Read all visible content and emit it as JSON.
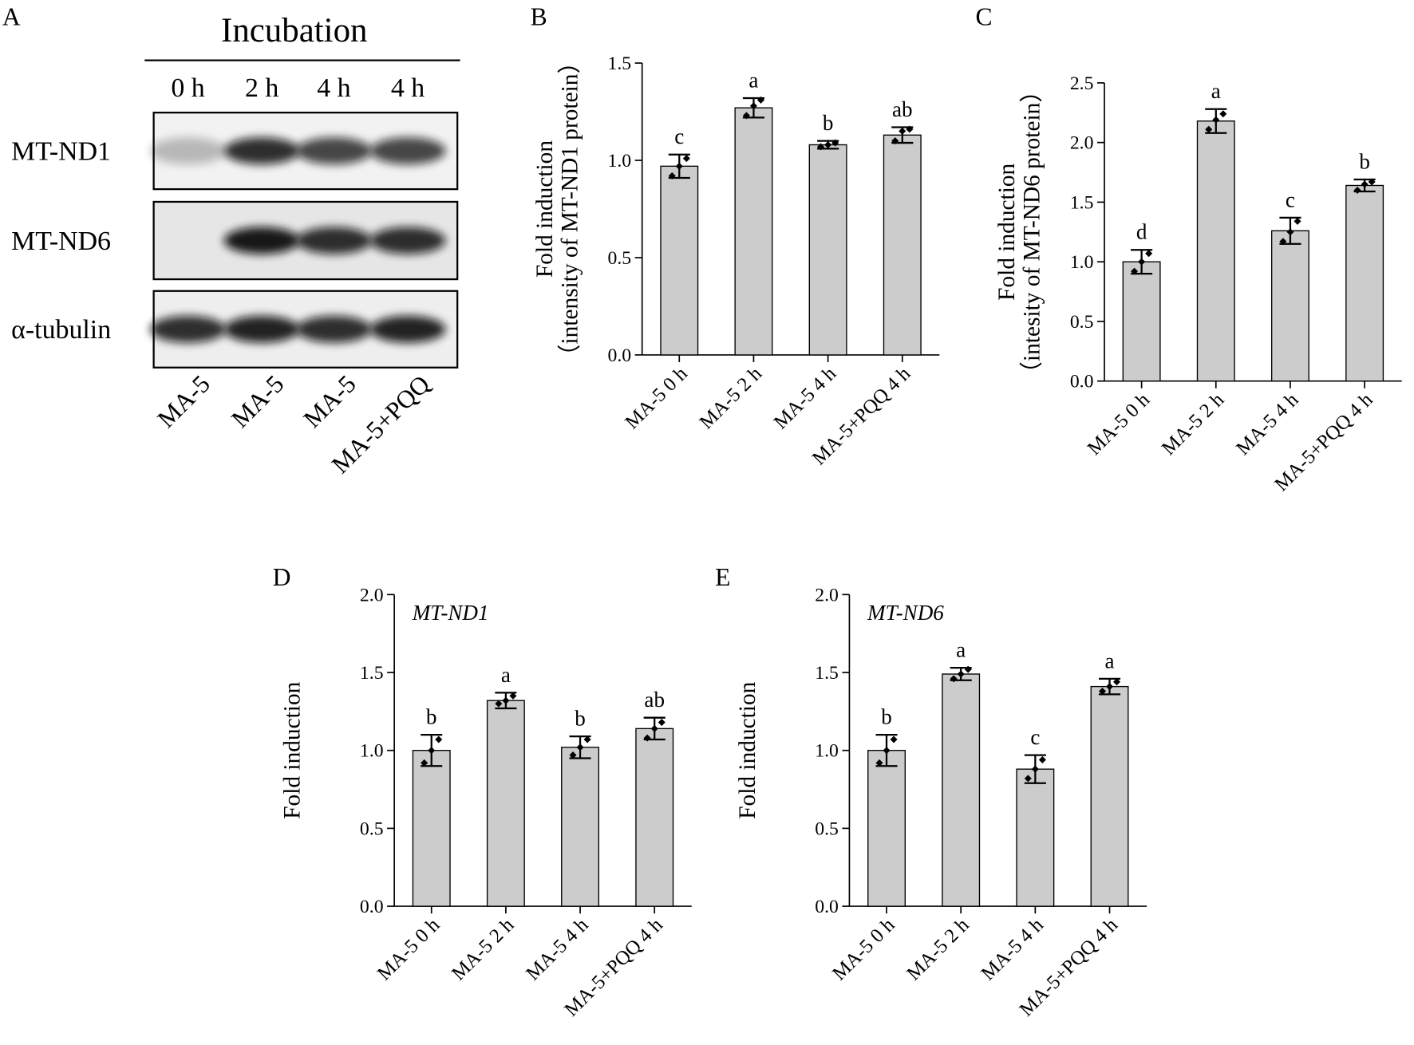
{
  "blot": {
    "panel_label": "A",
    "title": "Incubation",
    "times": [
      "0 h",
      "2 h",
      "4 h",
      "4 h"
    ],
    "rows": [
      "MT-ND1",
      "MT-ND6",
      "α-tubulin"
    ],
    "groups": [
      "MA-5",
      "MA-5",
      "MA-5",
      "MA-5+PQQ"
    ]
  },
  "chart_data": [
    {
      "type": "bar",
      "panel_label": "B",
      "y_label": [
        "Fold induction",
        "（intensity of  MT-ND1 protein）"
      ],
      "categories": [
        "MA-5 0 h",
        "MA-5 2 h",
        "MA-5 4 h",
        "MA-5+PQQ 4 h"
      ],
      "series": [
        {
          "color": "#cccccc",
          "values": [
            0.97,
            1.27,
            1.08,
            1.13
          ],
          "errors": [
            0.06,
            0.05,
            0.02,
            0.04
          ],
          "letters": [
            "c",
            "a",
            "b",
            "ab"
          ],
          "points": [
            [
              0.92,
              0.97,
              1.01
            ],
            [
              1.23,
              1.28,
              1.31
            ],
            [
              1.07,
              1.08,
              1.09
            ],
            [
              1.1,
              1.15,
              1.16
            ]
          ]
        }
      ],
      "ylim": [
        0,
        1.5
      ],
      "yticks": [
        {
          "value": 0,
          "label": "0.0"
        },
        0.5,
        {
          "value": 1,
          "label": "1.0"
        },
        1.5
      ]
    },
    {
      "type": "bar",
      "panel_label": "C",
      "y_label": [
        "Fold induction",
        "（intesity of MT-ND6 protein）"
      ],
      "categories": [
        "MA-5 0 h",
        "MA-5 2 h",
        "MA-5 4 h",
        "MA-5+PQQ 4 h"
      ],
      "series": [
        {
          "color": "#cccccc",
          "values": [
            1.0,
            2.18,
            1.26,
            1.64
          ],
          "errors": [
            0.1,
            0.1,
            0.11,
            0.05
          ],
          "letters": [
            "d",
            "a",
            "c",
            "b"
          ],
          "points": [
            [
              0.92,
              1.0,
              1.07
            ],
            [
              2.11,
              2.19,
              2.24
            ],
            [
              1.17,
              1.25,
              1.34
            ],
            [
              1.6,
              1.65,
              1.67
            ]
          ]
        }
      ],
      "ylim": [
        0,
        2.5
      ],
      "yticks": [
        {
          "value": 0,
          "label": "0.0"
        },
        0.5,
        {
          "value": 1,
          "label": "1.0"
        },
        1.5,
        {
          "value": 2,
          "label": "2.0"
        },
        2.5
      ]
    },
    {
      "type": "bar",
      "panel_label": "D",
      "y_label": [
        "Fold induction"
      ],
      "annotation": "MT-ND1",
      "categories": [
        "MA-5 0 h",
        "MA-5 2 h",
        "MA-5 4 h",
        "MA-5+PQQ 4 h"
      ],
      "series": [
        {
          "color": "#cccccc",
          "values": [
            1.0,
            1.32,
            1.02,
            1.14
          ],
          "errors": [
            0.1,
            0.05,
            0.07,
            0.07
          ],
          "letters": [
            "b",
            "a",
            "b",
            "ab"
          ],
          "points": [
            [
              0.92,
              1.0,
              1.07
            ],
            [
              1.3,
              1.32,
              1.35
            ],
            [
              0.97,
              1.02,
              1.07
            ],
            [
              1.08,
              1.14,
              1.18
            ]
          ]
        }
      ],
      "ylim": [
        0,
        2
      ],
      "yticks": [
        {
          "value": 0,
          "label": "0.0"
        },
        0.5,
        {
          "value": 1,
          "label": "1.0"
        },
        1.5,
        {
          "value": 2,
          "label": "2.0"
        }
      ]
    },
    {
      "type": "bar",
      "panel_label": "E",
      "y_label": [
        "Fold induction"
      ],
      "annotation": "MT-ND6",
      "categories": [
        "MA-5 0 h",
        "MA-5 2 h",
        "MA-5 4 h",
        "MA-5+PQQ 4 h"
      ],
      "series": [
        {
          "color": "#cccccc",
          "values": [
            1.0,
            1.49,
            0.88,
            1.41
          ],
          "errors": [
            0.1,
            0.04,
            0.09,
            0.05
          ],
          "letters": [
            "b",
            "a",
            "c",
            "a"
          ],
          "points": [
            [
              0.92,
              1.0,
              1.07
            ],
            [
              1.46,
              1.49,
              1.52
            ],
            [
              0.82,
              0.88,
              0.94
            ],
            [
              1.38,
              1.41,
              1.44
            ]
          ]
        }
      ],
      "ylim": [
        0,
        2
      ],
      "yticks": [
        {
          "value": 0,
          "label": "0.0"
        },
        0.5,
        {
          "value": 1,
          "label": "1.0"
        },
        1.5,
        {
          "value": 2,
          "label": "2.0"
        }
      ]
    }
  ]
}
